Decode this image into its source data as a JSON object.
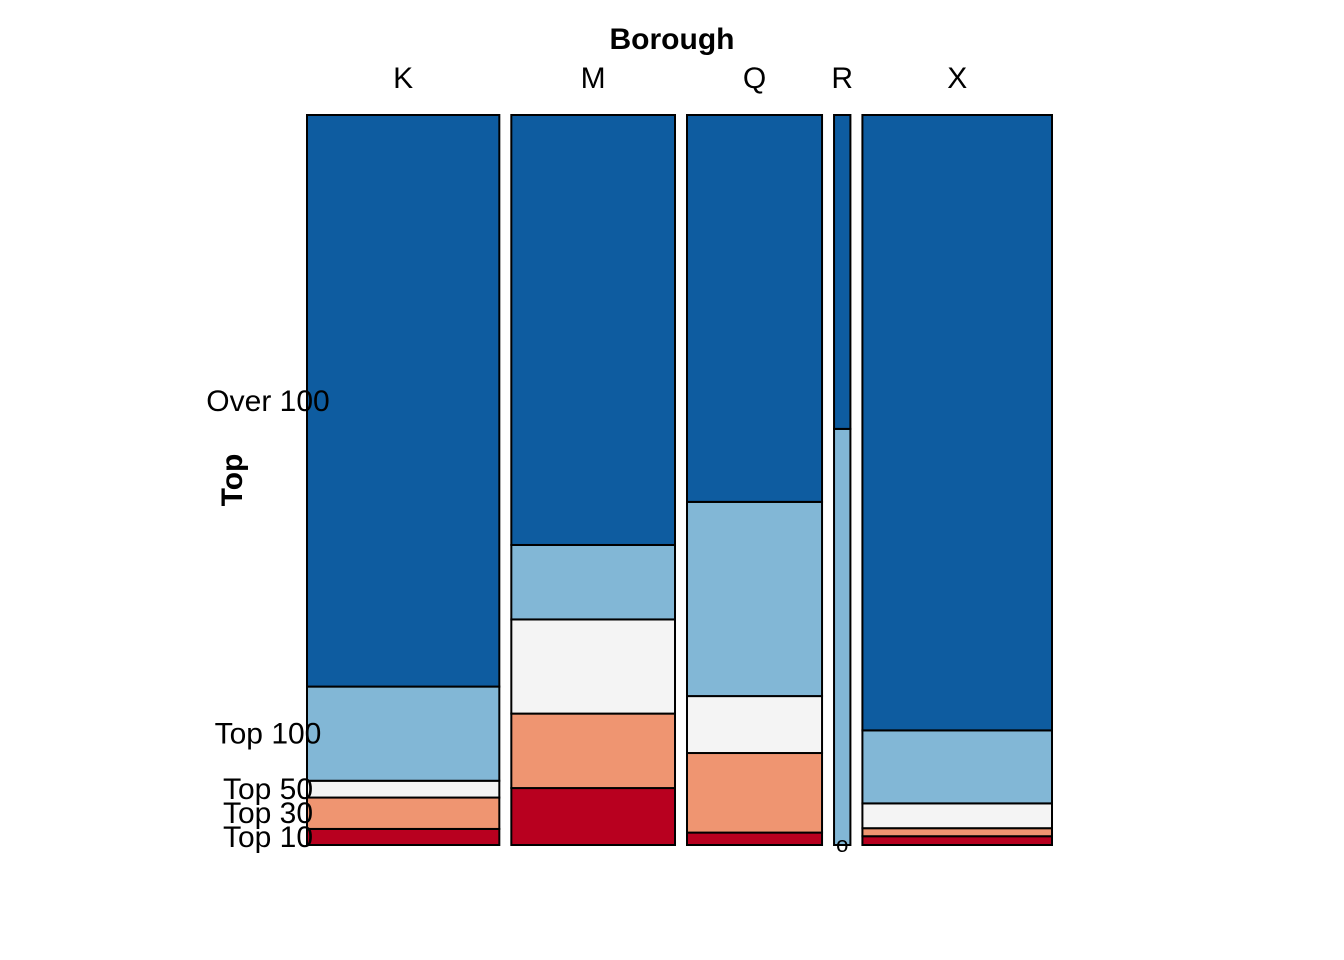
{
  "chart_data": {
    "type": "mosaic",
    "x_variable": "Borough",
    "y_variable": "Top",
    "columns": [
      "K",
      "M",
      "Q",
      "R",
      "X"
    ],
    "column_proportions": [
      0.282,
      0.24,
      0.198,
      0.024,
      0.278
    ],
    "levels": [
      "Top 10",
      "Top 30",
      "Top 50",
      "Top 100",
      "Over 100"
    ],
    "row_label_marks": [
      "Top 10",
      "Top 30",
      "Top 50",
      "Top 100",
      "Over 100"
    ],
    "empty_cell_marker": "o",
    "series": [
      {
        "name": "Top 10",
        "values": [
          0.022,
          0.078,
          0.017,
          0.0,
          0.012
        ],
        "color": "#b8001f"
      },
      {
        "name": "Top 30",
        "values": [
          0.043,
          0.102,
          0.109,
          0.0,
          0.011
        ],
        "color": "#ef9571"
      },
      {
        "name": "Top 50",
        "values": [
          0.023,
          0.129,
          0.078,
          0.0,
          0.034
        ],
        "color": "#f4f4f4"
      },
      {
        "name": "Top 100",
        "values": [
          0.129,
          0.102,
          0.266,
          0.57,
          0.1
        ],
        "color": "#82b7d6"
      },
      {
        "name": "Over 100",
        "values": [
          0.783,
          0.589,
          0.53,
          0.43,
          0.843
        ],
        "color": "#0e5ca0"
      }
    ]
  }
}
